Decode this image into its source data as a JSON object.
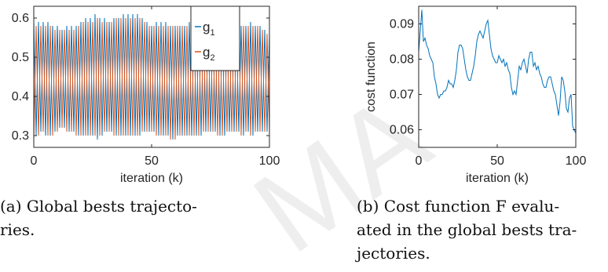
{
  "chart_data": [
    {
      "type": "line",
      "title": "",
      "xlabel": "iteration (k)",
      "ylabel": "",
      "xlim": [
        0,
        100
      ],
      "ylim": [
        0.27,
        0.63
      ],
      "xticks": [
        0,
        50,
        100
      ],
      "yticks": [
        0.3,
        0.4,
        0.5,
        0.6
      ],
      "xtick_labels": [
        "0",
        "50",
        "100"
      ],
      "ytick_labels": [
        "0.3",
        "0.4",
        "0.5",
        "0.6"
      ],
      "grid": false,
      "legend": "top-right",
      "series": [
        {
          "name": "g",
          "subscript": "1",
          "color": "#0072BD",
          "x": [
            0,
            1,
            2,
            3,
            4,
            5,
            6,
            7,
            8,
            9,
            10,
            11,
            12,
            13,
            14,
            15,
            16,
            17,
            18,
            19,
            20,
            21,
            22,
            23,
            24,
            25,
            26,
            27,
            28,
            29,
            30,
            31,
            32,
            33,
            34,
            35,
            36,
            37,
            38,
            39,
            40,
            41,
            42,
            43,
            44,
            45,
            46,
            47,
            48,
            49,
            50,
            51,
            52,
            53,
            54,
            55,
            56,
            57,
            58,
            59,
            60,
            61,
            62,
            63,
            64,
            65,
            66,
            67,
            68,
            69,
            70,
            71,
            72,
            73,
            74,
            75,
            76,
            77,
            78,
            79,
            80,
            81,
            82,
            83,
            84,
            85,
            86,
            87,
            88,
            89,
            90,
            91,
            92,
            93,
            94,
            95,
            96,
            97,
            98,
            99,
            100
          ],
          "values": [
            0.59,
            0.3,
            0.59,
            0.31,
            0.59,
            0.3,
            0.59,
            0.3,
            0.58,
            0.31,
            0.58,
            0.32,
            0.57,
            0.32,
            0.58,
            0.31,
            0.58,
            0.31,
            0.58,
            0.3,
            0.59,
            0.3,
            0.6,
            0.3,
            0.6,
            0.3,
            0.61,
            0.29,
            0.6,
            0.3,
            0.6,
            0.31,
            0.59,
            0.31,
            0.6,
            0.3,
            0.6,
            0.3,
            0.61,
            0.3,
            0.61,
            0.3,
            0.61,
            0.3,
            0.61,
            0.3,
            0.6,
            0.31,
            0.59,
            0.31,
            0.58,
            0.31,
            0.59,
            0.3,
            0.59,
            0.3,
            0.59,
            0.3,
            0.58,
            0.29,
            0.58,
            0.3,
            0.58,
            0.3,
            0.58,
            0.3,
            0.59,
            0.3,
            0.59,
            0.3,
            0.59,
            0.3,
            0.6,
            0.31,
            0.59,
            0.31,
            0.59,
            0.31,
            0.6,
            0.3,
            0.59,
            0.3,
            0.58,
            0.31,
            0.58,
            0.31,
            0.58,
            0.31,
            0.58,
            0.3,
            0.58,
            0.31,
            0.59,
            0.3,
            0.58,
            0.31,
            0.58,
            0.31,
            0.57,
            0.31,
            0.56
          ]
        },
        {
          "name": "g",
          "subscript": "2",
          "color": "#D95319",
          "x": [
            0,
            1,
            2,
            3,
            4,
            5,
            6,
            7,
            8,
            9,
            10,
            11,
            12,
            13,
            14,
            15,
            16,
            17,
            18,
            19,
            20,
            21,
            22,
            23,
            24,
            25,
            26,
            27,
            28,
            29,
            30,
            31,
            32,
            33,
            34,
            35,
            36,
            37,
            38,
            39,
            40,
            41,
            42,
            43,
            44,
            45,
            46,
            47,
            48,
            49,
            50,
            51,
            52,
            53,
            54,
            55,
            56,
            57,
            58,
            59,
            60,
            61,
            62,
            63,
            64,
            65,
            66,
            67,
            68,
            69,
            70,
            71,
            72,
            73,
            74,
            75,
            76,
            77,
            78,
            79,
            80,
            81,
            82,
            83,
            84,
            85,
            86,
            87,
            88,
            89,
            90,
            91,
            92,
            93,
            94,
            95,
            96,
            97,
            98,
            99,
            100
          ],
          "values": [
            0.29,
            0.58,
            0.3,
            0.58,
            0.31,
            0.58,
            0.3,
            0.58,
            0.3,
            0.57,
            0.31,
            0.57,
            0.32,
            0.57,
            0.31,
            0.57,
            0.31,
            0.57,
            0.3,
            0.58,
            0.3,
            0.59,
            0.3,
            0.59,
            0.3,
            0.59,
            0.3,
            0.6,
            0.3,
            0.59,
            0.31,
            0.59,
            0.31,
            0.59,
            0.3,
            0.6,
            0.3,
            0.6,
            0.3,
            0.6,
            0.3,
            0.6,
            0.3,
            0.6,
            0.3,
            0.6,
            0.31,
            0.59,
            0.31,
            0.58,
            0.31,
            0.58,
            0.3,
            0.58,
            0.3,
            0.58,
            0.3,
            0.58,
            0.29,
            0.58,
            0.29,
            0.58,
            0.3,
            0.58,
            0.3,
            0.58,
            0.3,
            0.58,
            0.3,
            0.58,
            0.3,
            0.59,
            0.31,
            0.59,
            0.31,
            0.59,
            0.31,
            0.59,
            0.3,
            0.59,
            0.3,
            0.58,
            0.31,
            0.58,
            0.31,
            0.58,
            0.31,
            0.58,
            0.3,
            0.58,
            0.31,
            0.58,
            0.3,
            0.58,
            0.31,
            0.58,
            0.31,
            0.57,
            0.31,
            0.56,
            0.31
          ]
        }
      ]
    },
    {
      "type": "line",
      "title": "",
      "xlabel": "iteration (k)",
      "ylabel": "cost function",
      "xlim": [
        0,
        100
      ],
      "ylim": [
        0.055,
        0.095
      ],
      "xticks": [
        0,
        50,
        100
      ],
      "yticks": [
        0.06,
        0.07,
        0.08,
        0.09
      ],
      "xtick_labels": [
        "0",
        "50",
        "100"
      ],
      "ytick_labels": [
        "0.06",
        "0.07",
        "0.08",
        "0.09"
      ],
      "grid": false,
      "series": [
        {
          "color": "#0072BD",
          "x": [
            0,
            1,
            2,
            3,
            4,
            5,
            6,
            7,
            8,
            9,
            10,
            11,
            12,
            13,
            14,
            15,
            16,
            17,
            18,
            19,
            20,
            21,
            22,
            23,
            24,
            25,
            26,
            27,
            28,
            29,
            30,
            31,
            32,
            33,
            34,
            35,
            36,
            37,
            38,
            39,
            40,
            41,
            42,
            43,
            44,
            45,
            46,
            47,
            48,
            49,
            50,
            51,
            52,
            53,
            54,
            55,
            56,
            57,
            58,
            59,
            60,
            61,
            62,
            63,
            64,
            65,
            66,
            67,
            68,
            69,
            70,
            71,
            72,
            73,
            74,
            75,
            76,
            77,
            78,
            79,
            80,
            81,
            82,
            83,
            84,
            85,
            86,
            87,
            88,
            89,
            90,
            91,
            92,
            93,
            94,
            95,
            96,
            97,
            98,
            99,
            100
          ],
          "values": [
            0.082,
            0.088,
            0.094,
            0.085,
            0.086,
            0.084,
            0.083,
            0.081,
            0.08,
            0.079,
            0.075,
            0.073,
            0.07,
            0.069,
            0.07,
            0.07,
            0.071,
            0.071,
            0.072,
            0.074,
            0.073,
            0.073,
            0.072,
            0.074,
            0.077,
            0.082,
            0.084,
            0.084,
            0.083,
            0.08,
            0.077,
            0.075,
            0.074,
            0.074,
            0.076,
            0.078,
            0.081,
            0.085,
            0.087,
            0.088,
            0.087,
            0.086,
            0.088,
            0.09,
            0.091,
            0.087,
            0.083,
            0.081,
            0.08,
            0.079,
            0.079,
            0.081,
            0.08,
            0.079,
            0.08,
            0.078,
            0.079,
            0.077,
            0.076,
            0.072,
            0.07,
            0.071,
            0.07,
            0.074,
            0.078,
            0.077,
            0.079,
            0.08,
            0.078,
            0.076,
            0.08,
            0.082,
            0.082,
            0.078,
            0.079,
            0.077,
            0.078,
            0.076,
            0.075,
            0.073,
            0.072,
            0.072,
            0.074,
            0.075,
            0.075,
            0.073,
            0.071,
            0.07,
            0.067,
            0.064,
            0.068,
            0.075,
            0.074,
            0.071,
            0.066,
            0.065,
            0.069,
            0.07,
            0.061,
            0.06,
            0.059
          ]
        }
      ]
    }
  ],
  "captions": [
    {
      "line1": "(a)  Global bests trajecto-",
      "line2": "ries."
    },
    {
      "line1": "(b)  Cost function F evalu-",
      "line2": "ated in the global bests tra-",
      "line3": "jectories."
    }
  ]
}
